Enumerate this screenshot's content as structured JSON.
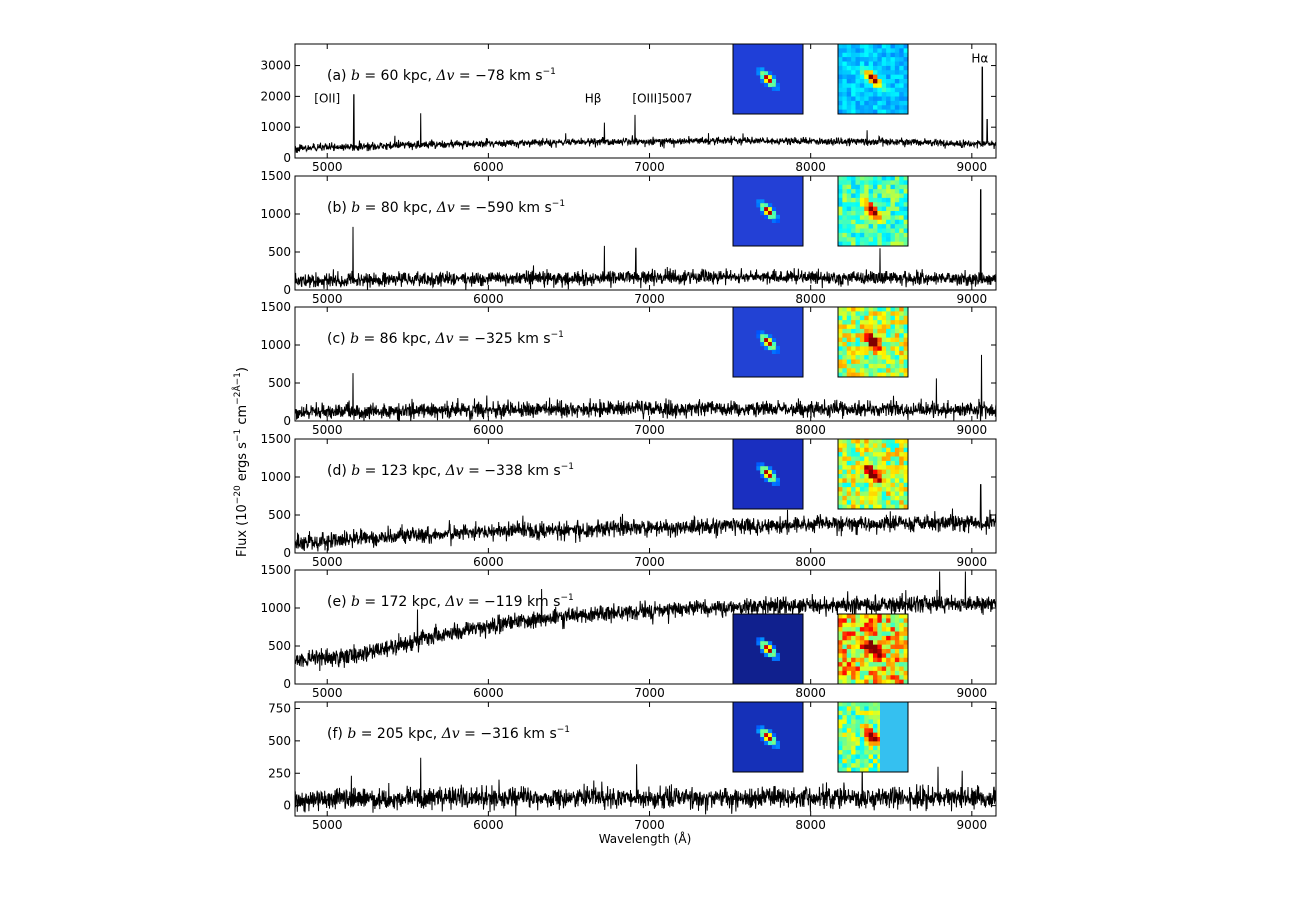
{
  "figure": {
    "ylabel": "Flux (10",
    "ylabel_sup1": "−20",
    "ylabel_mid1": " ergs s",
    "ylabel_sup2": "−1",
    "ylabel_mid2": " cm",
    "ylabel_sup3": "−2",
    "ylabel_mid3": "Å",
    "ylabel_sup4": "−1",
    "ylabel_end": ")",
    "xlabel": "Wavelength (Å)"
  },
  "chart_data": [
    {
      "type": "line",
      "id": "a",
      "panel_label": "(a)",
      "b": "60",
      "dv": "−78",
      "xlim": [
        4800,
        9150
      ],
      "ylim": [
        0,
        3700
      ],
      "yticks": [
        0,
        1000,
        2000,
        3000
      ],
      "ytick_labels": [
        "0",
        "1000",
        "2000",
        "3000"
      ],
      "xticks": [
        5000,
        6000,
        7000,
        8000,
        9000
      ],
      "xtick_labels": [
        "5000",
        "6000",
        "7000",
        "8000",
        "9000"
      ],
      "continuum": [
        [
          4800,
          300
        ],
        [
          5500,
          420
        ],
        [
          6500,
          520
        ],
        [
          7500,
          570
        ],
        [
          8500,
          520
        ],
        [
          9150,
          450
        ]
      ],
      "noise": 60,
      "lines": [
        [
          5165,
          2050
        ],
        [
          5580,
          1450
        ],
        [
          5420,
          720
        ],
        [
          6720,
          1150
        ],
        [
          6910,
          1400
        ],
        [
          7580,
          800
        ],
        [
          8350,
          900
        ],
        [
          9065,
          2950
        ],
        [
          9095,
          1250
        ]
      ],
      "line_labels": [
        {
          "text": "[OII]",
          "x": 5000,
          "y": 1800
        },
        {
          "text": "Hβ",
          "x": 6650,
          "y": 1800
        },
        {
          "text": "[OIII]5007",
          "x": 7080,
          "y": 1800
        },
        {
          "text": "Hα",
          "x": 9050,
          "y": 3100
        }
      ],
      "thumb_bg": [
        "#1f3fd8",
        "#1d43d4"
      ],
      "thumb_noise": [
        0.05,
        0.12
      ]
    },
    {
      "type": "line",
      "id": "b",
      "panel_label": "(b)",
      "b": "80",
      "dv": "−590",
      "xlim": [
        4800,
        9150
      ],
      "ylim": [
        0,
        1500
      ],
      "yticks": [
        0,
        500,
        1000,
        1500
      ],
      "ytick_labels": [
        "0",
        "500",
        "1000",
        "1500"
      ],
      "xticks": [
        5000,
        6000,
        7000,
        8000,
        9000
      ],
      "xtick_labels": [
        "5000",
        "6000",
        "7000",
        "8000",
        "9000"
      ],
      "continuum": [
        [
          4800,
          120
        ],
        [
          6000,
          150
        ],
        [
          7500,
          170
        ],
        [
          9150,
          150
        ]
      ],
      "noise": 45,
      "lines": [
        [
          5160,
          830
        ],
        [
          6720,
          580
        ],
        [
          6915,
          550
        ],
        [
          8430,
          550
        ],
        [
          9055,
          1320
        ]
      ],
      "line_labels": [],
      "thumb_bg": [
        "#2340d6",
        "#2ea0e8"
      ],
      "thumb_noise": [
        0.05,
        0.25
      ]
    },
    {
      "type": "line",
      "id": "c",
      "panel_label": "(c)",
      "b": "86",
      "dv": "−325",
      "xlim": [
        4800,
        9150
      ],
      "ylim": [
        0,
        1500
      ],
      "yticks": [
        0,
        500,
        1000,
        1500
      ],
      "ytick_labels": [
        "0",
        "500",
        "1000",
        "1500"
      ],
      "xticks": [
        5000,
        6000,
        7000,
        8000,
        9000
      ],
      "xtick_labels": [
        "5000",
        "6000",
        "7000",
        "8000",
        "9000"
      ],
      "continuum": [
        [
          4800,
          110
        ],
        [
          6000,
          150
        ],
        [
          7500,
          160
        ],
        [
          9150,
          150
        ]
      ],
      "noise": 50,
      "lines": [
        [
          5160,
          630
        ],
        [
          8780,
          560
        ],
        [
          9060,
          870
        ]
      ],
      "line_labels": [],
      "thumb_bg": [
        "#2242d4",
        "#4fd0c8"
      ],
      "thumb_noise": [
        0.05,
        0.35
      ]
    },
    {
      "type": "line",
      "id": "d",
      "panel_label": "(d)",
      "b": "123",
      "dv": "−338",
      "xlim": [
        4800,
        9150
      ],
      "ylim": [
        0,
        1500
      ],
      "yticks": [
        0,
        500,
        1000,
        1500
      ],
      "ytick_labels": [
        "0",
        "500",
        "1000",
        "1500"
      ],
      "xticks": [
        5000,
        6000,
        7000,
        8000,
        9000
      ],
      "xtick_labels": [
        "5000",
        "6000",
        "7000",
        "8000",
        "9000"
      ],
      "continuum": [
        [
          4800,
          130
        ],
        [
          5500,
          230
        ],
        [
          6000,
          280
        ],
        [
          7000,
          330
        ],
        [
          8000,
          370
        ],
        [
          9150,
          400
        ]
      ],
      "noise": 55,
      "lines": [
        [
          9055,
          900
        ]
      ],
      "line_labels": [],
      "thumb_bg": [
        "#1a2fc0",
        "#54d4b8"
      ],
      "thumb_noise": [
        0.04,
        0.35
      ]
    },
    {
      "type": "line",
      "id": "e",
      "panel_label": "(e)",
      "b": "172",
      "dv": "−119",
      "xlim": [
        4800,
        9150
      ],
      "ylim": [
        0,
        1500
      ],
      "yticks": [
        0,
        500,
        1000,
        1500
      ],
      "ytick_labels": [
        "0",
        "500",
        "1000",
        "1500"
      ],
      "xticks": [
        5000,
        6000,
        7000,
        8000,
        9000
      ],
      "xtick_labels": [
        "5000",
        "6000",
        "7000",
        "8000",
        "9000"
      ],
      "continuum": [
        [
          4800,
          320
        ],
        [
          5200,
          380
        ],
        [
          5500,
          560
        ],
        [
          6000,
          760
        ],
        [
          6500,
          900
        ],
        [
          7000,
          960
        ],
        [
          7500,
          1010
        ],
        [
          8000,
          1030
        ],
        [
          8500,
          1040
        ],
        [
          9150,
          1050
        ]
      ],
      "noise": 55,
      "lines": [
        [
          5560,
          980
        ],
        [
          6330,
          1250
        ],
        [
          8800,
          1480
        ],
        [
          8960,
          1480
        ]
      ],
      "line_labels": [],
      "thumb_bg": [
        "#10208e",
        "#a9d67a"
      ],
      "thumb_noise": [
        0.04,
        0.45
      ]
    },
    {
      "type": "line",
      "id": "f",
      "panel_label": "(f)",
      "b": "205",
      "dv": "−316",
      "xlim": [
        4800,
        9150
      ],
      "ylim": [
        -80,
        800
      ],
      "yticks": [
        0,
        250,
        500,
        750
      ],
      "ytick_labels": [
        "0",
        "250",
        "500",
        "750"
      ],
      "xticks": [
        5000,
        6000,
        7000,
        8000,
        9000
      ],
      "xtick_labels": [
        "5000",
        "6000",
        "7000",
        "8000",
        "9000"
      ],
      "continuum": [
        [
          4800,
          50
        ],
        [
          6000,
          60
        ],
        [
          7500,
          60
        ],
        [
          9150,
          60
        ]
      ],
      "noise": 40,
      "lines": [
        [
          5150,
          230
        ],
        [
          5580,
          370
        ],
        [
          6920,
          320
        ],
        [
          8320,
          330
        ],
        [
          8790,
          300
        ],
        [
          8940,
          270
        ]
      ],
      "line_labels": [],
      "thumb_bg": [
        "#1530b8",
        "#3a9fe0"
      ],
      "thumb_noise": [
        0.06,
        0.3
      ]
    }
  ]
}
